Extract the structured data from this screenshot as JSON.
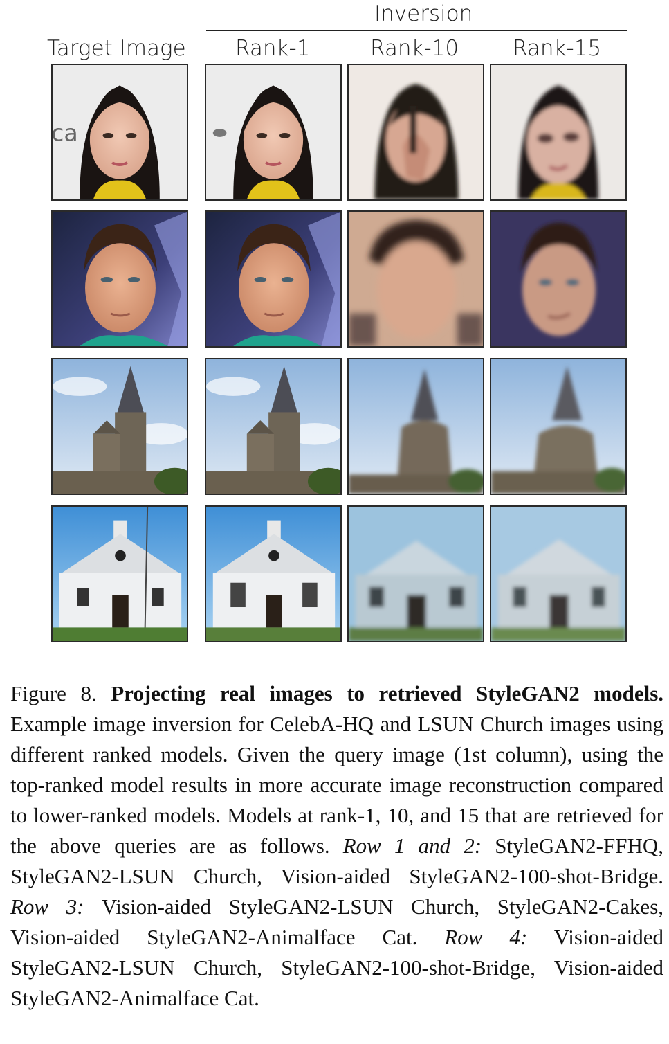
{
  "figure": {
    "header_inversion": "Inversion",
    "columns": [
      "Target Image",
      "Rank-1",
      "Rank-10",
      "Rank-15"
    ],
    "rows": [
      {
        "subject": "woman-portrait"
      },
      {
        "subject": "man-portrait"
      },
      {
        "subject": "stone-church"
      },
      {
        "subject": "white-church"
      }
    ]
  },
  "caption": {
    "label": "Figure 8.",
    "title": "Projecting real images to retrieved StyleGAN2 models.",
    "body": "Example image inversion for CelebA-HQ and LSUN Church images using different ranked models.  Given the query image (1st column), using the top-ranked model results in more accurate image reconstruction compared to lower-ranked models.  Models at rank-1, 10, and 15 that are retrieved for the above queries are as follows. ",
    "row12_label": "Row 1 and 2:",
    "row12_text": " StyleGAN2-FFHQ, StyleGAN2-LSUN Church, Vision-aided StyleGAN2-100-shot-Bridge. ",
    "row3_label": "Row 3:",
    "row3_text": " Vision-aided StyleGAN2-LSUN Church, StyleGAN2-Cakes, Vision-aided StyleGAN2-Animalface Cat. ",
    "row4_label": "Row 4:",
    "row4_text": " Vision-aided StyleGAN2-LSUN Church, StyleGAN2-100-shot-Bridge, Vision-aided StyleGAN2-Animalface Cat."
  }
}
